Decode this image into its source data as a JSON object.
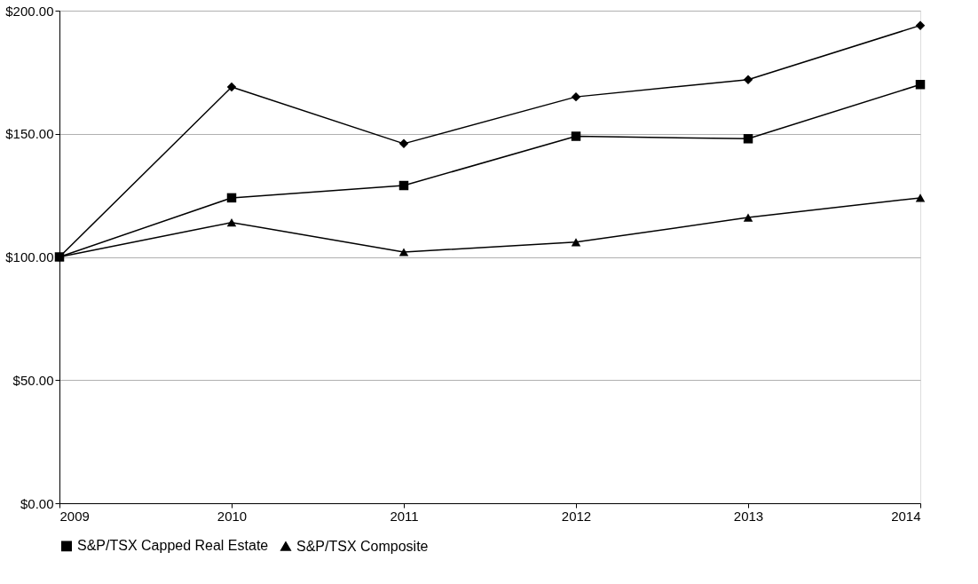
{
  "chart_data": {
    "type": "line",
    "x": [
      2009,
      2010,
      2011,
      2012,
      2013,
      2014
    ],
    "series": [
      {
        "color": "#000000",
        "marker": "diamond",
        "values": [
          100,
          169,
          146,
          165,
          172,
          194
        ]
      },
      {
        "name": "S&P/TSX Capped Real Estate",
        "color": "#000000",
        "marker": "square",
        "values": [
          100,
          124,
          129,
          149,
          148,
          170
        ]
      },
      {
        "name": "S&P/TSX Composite",
        "color": "#000000",
        "marker": "triangle",
        "values": [
          100,
          114,
          102,
          106,
          116,
          124
        ]
      }
    ],
    "xlim": [
      2009,
      2014
    ],
    "xticks": [
      2009,
      2010,
      2011,
      2012,
      2013,
      2014
    ],
    "ylim": [
      0,
      200
    ],
    "yticks": [
      {
        "value": 0,
        "label": "$0.00"
      },
      {
        "value": 50,
        "label": "$50.00"
      },
      {
        "value": 100,
        "label": "$100.00"
      },
      {
        "value": 150,
        "label": "$150.00"
      },
      {
        "value": 200,
        "label": "$200.00"
      }
    ],
    "grid": "y",
    "legend": "bottom",
    "line_style": "solid"
  }
}
